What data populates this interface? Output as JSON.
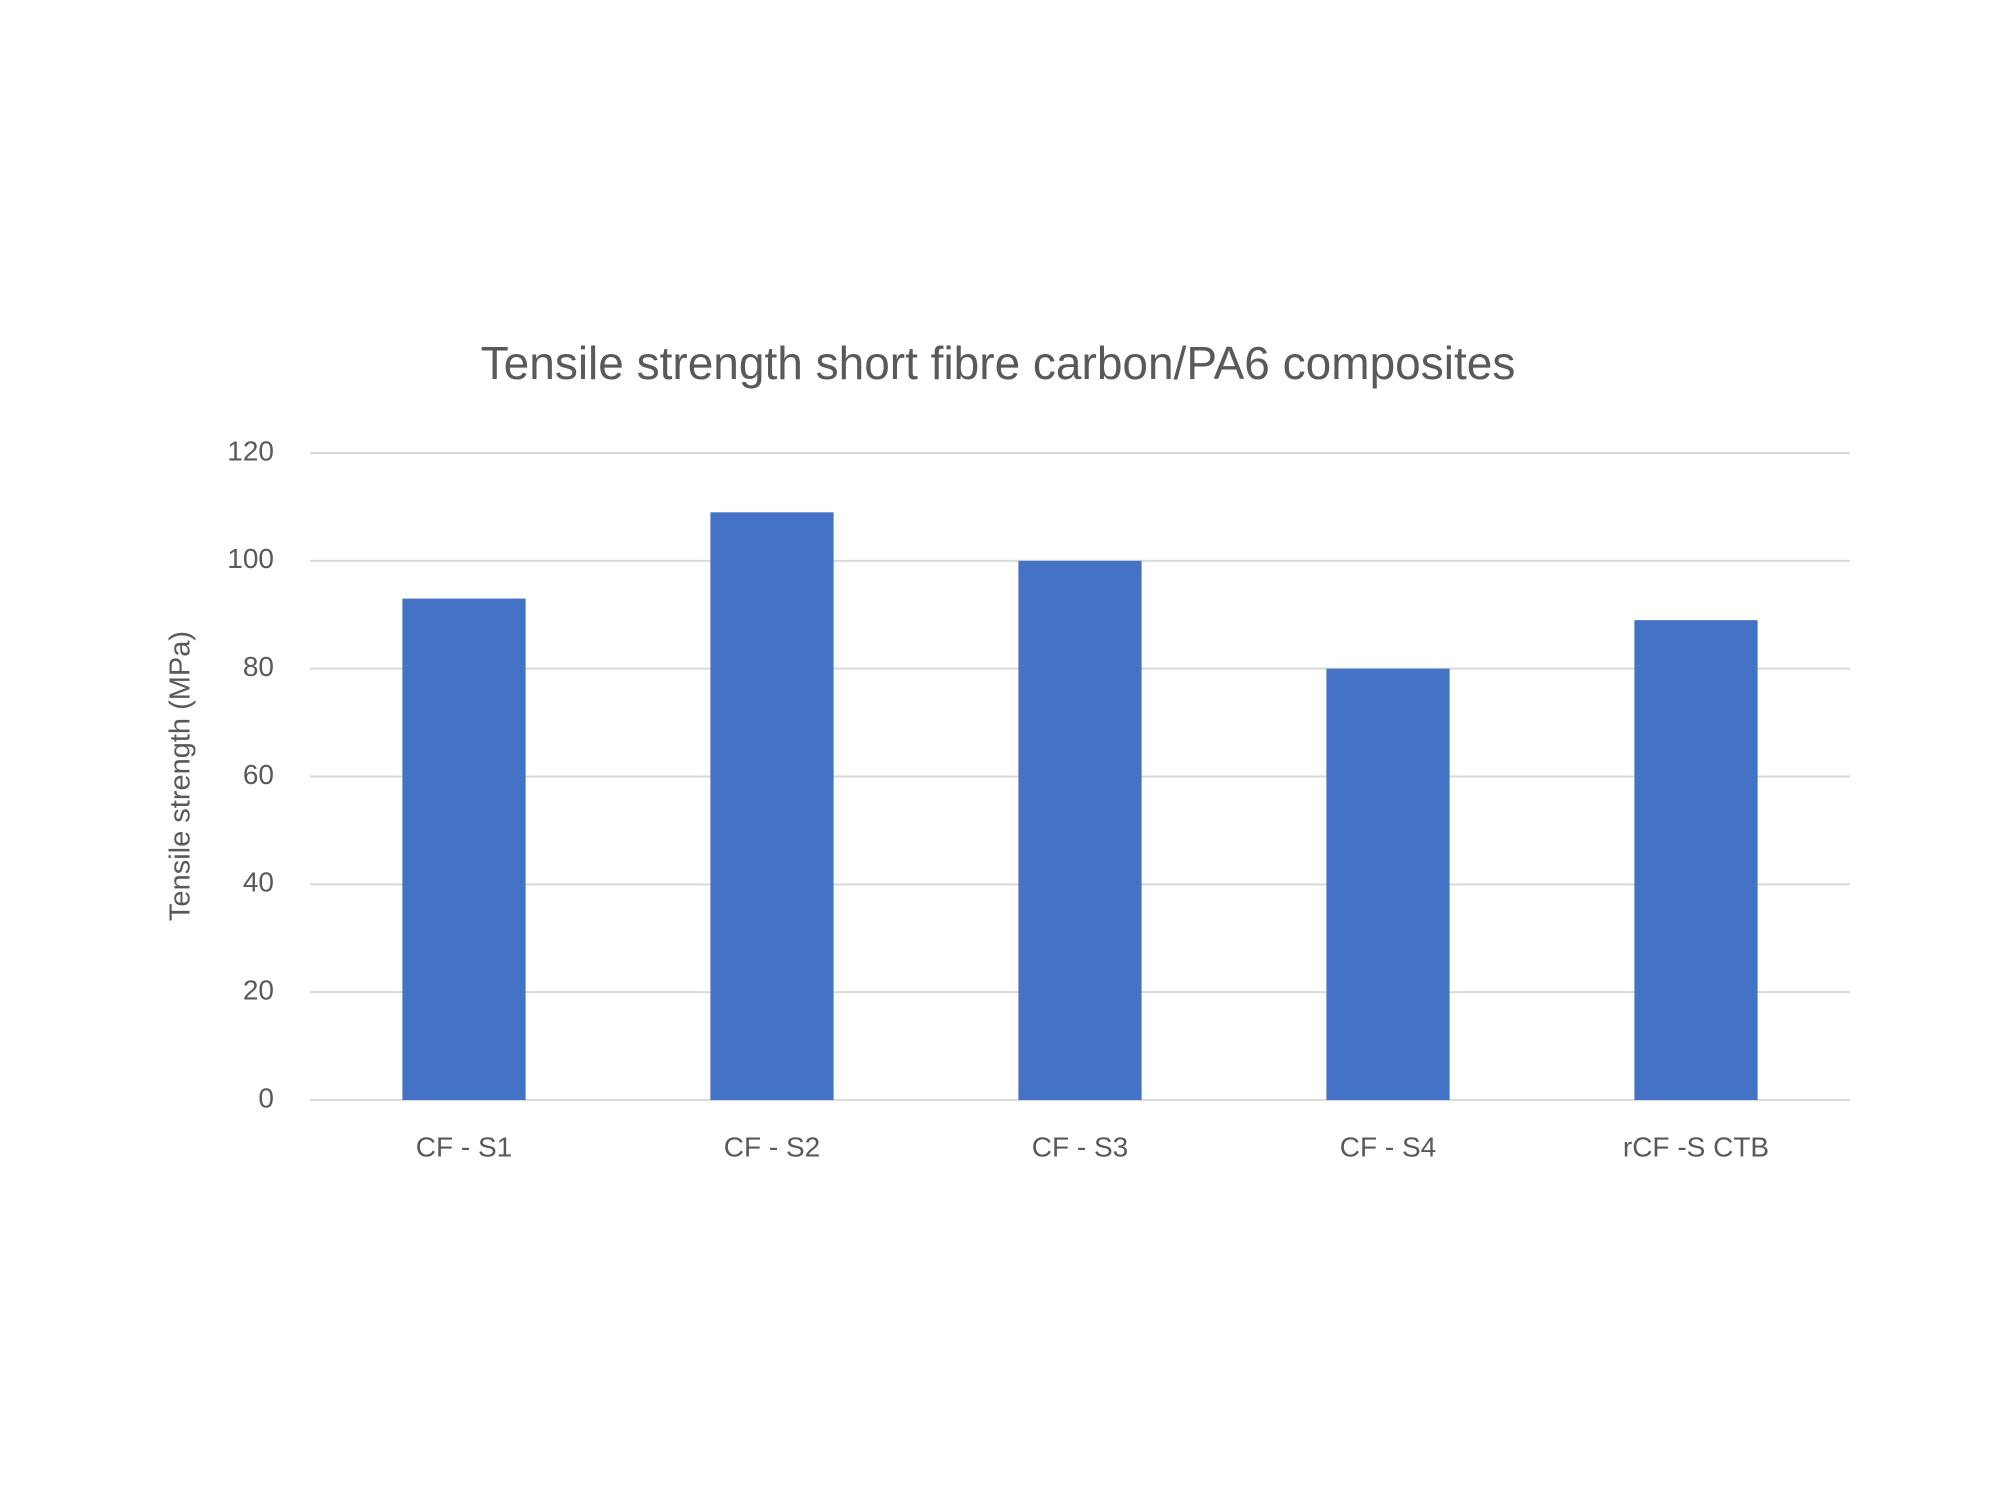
{
  "chart_data": {
    "type": "bar",
    "title": "Tensile strength short fibre carbon/PA6 composites",
    "y_label": "Tensile strength (MPa)",
    "categories": [
      "CF - S1",
      "CF - S2",
      "CF - S3",
      "CF - S4",
      "rCF -S CTB"
    ],
    "values": [
      93,
      109,
      100,
      80,
      89
    ],
    "color": "#4472c4",
    "ylim": [
      0,
      120
    ],
    "yticks": [
      0,
      20,
      40,
      60,
      80,
      100,
      120
    ],
    "grid": true
  }
}
